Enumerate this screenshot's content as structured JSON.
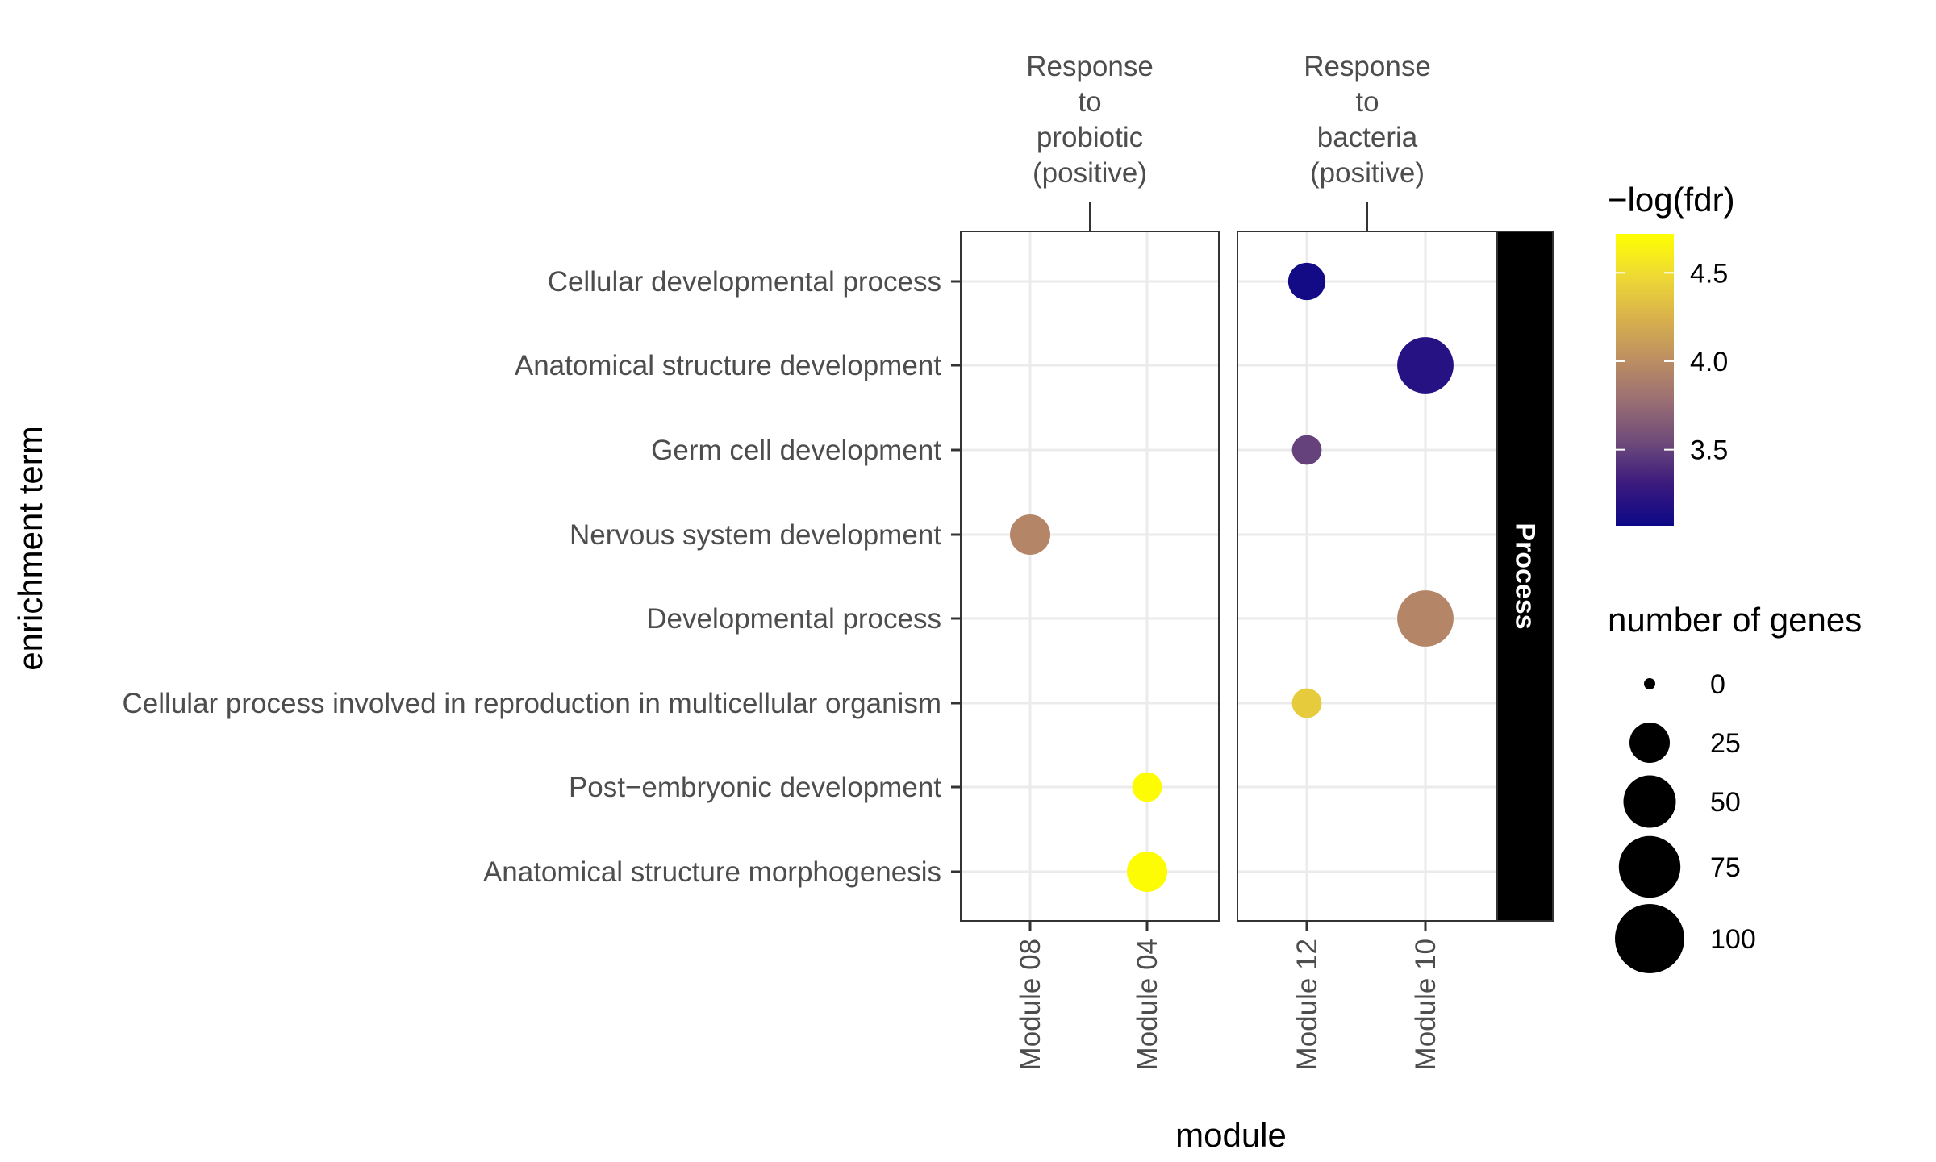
{
  "chart_data": {
    "type": "scatter",
    "ylabel": "enrichment term",
    "xlabel": "module",
    "facet_strip": "Process",
    "panels": [
      {
        "label": "Response\nto\nprobiotic\n(positive)",
        "modules": [
          "Module 08",
          "Module 04"
        ]
      },
      {
        "label": "Response\nto\nbacteria\n(positive)",
        "modules": [
          "Module 12",
          "Module 10"
        ]
      }
    ],
    "terms": [
      "Cellular developmental process",
      "Anatomical structure development",
      "Germ cell development",
      "Nervous system development",
      "Developmental process",
      "Cellular process involved in reproduction in multicellular organism",
      "Post−embryonic development",
      "Anatomical structure morphogenesis"
    ],
    "points": [
      {
        "module": "Module 12",
        "term": "Cellular developmental process",
        "neg_log_fdr": 3.1,
        "genes": 20
      },
      {
        "module": "Module 10",
        "term": "Anatomical structure development",
        "neg_log_fdr": 3.2,
        "genes": 60
      },
      {
        "module": "Module 12",
        "term": "Germ cell development",
        "neg_log_fdr": 3.5,
        "genes": 10
      },
      {
        "module": "Module 08",
        "term": "Nervous system development",
        "neg_log_fdr": 3.95,
        "genes": 25
      },
      {
        "module": "Module 10",
        "term": "Developmental process",
        "neg_log_fdr": 3.95,
        "genes": 60
      },
      {
        "module": "Module 12",
        "term": "Cellular process involved in reproduction in multicellular organism",
        "neg_log_fdr": 4.4,
        "genes": 10
      },
      {
        "module": "Module 04",
        "term": "Post−embryonic development",
        "neg_log_fdr": 4.7,
        "genes": 10
      },
      {
        "module": "Module 04",
        "term": "Anatomical structure morphogenesis",
        "neg_log_fdr": 4.7,
        "genes": 25
      }
    ],
    "color_legend": {
      "title": "−log(fdr)",
      "range": [
        3.07,
        4.72
      ],
      "ticks": [
        3.5,
        4.0,
        4.5
      ],
      "tick_labels": [
        "3.5",
        "4.0",
        "4.5"
      ],
      "palette": [
        "#0d0887",
        "#3b1a7e",
        "#6e4a7a",
        "#9a6f73",
        "#bd8f62",
        "#d9b24b",
        "#eeda34",
        "#ffff00"
      ]
    },
    "size_legend": {
      "title": "number of genes",
      "values": [
        0,
        25,
        50,
        75,
        100
      ],
      "labels": [
        "0",
        "25",
        "50",
        "75",
        "100"
      ]
    },
    "grid": true,
    "legend_position": "right"
  }
}
